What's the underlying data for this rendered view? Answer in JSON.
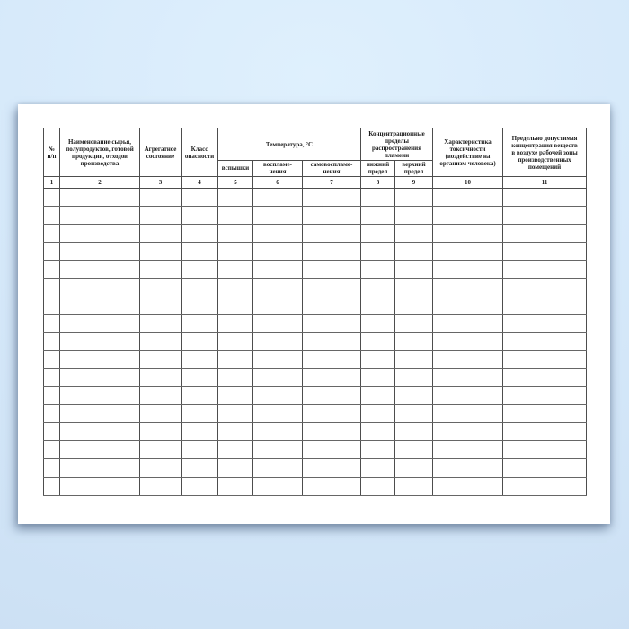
{
  "document": {
    "table": {
      "headers": {
        "num": "№\nп/п",
        "name": "Наименование сырья,\nполупродуктов, готовой\nпродукции, отходов\nпроизводства",
        "state": "Агрегатное\nсостояние",
        "hazard_class": "Класс\nопасности",
        "temperature_group": "Температура, °С",
        "temp_flash": "вспышки",
        "temp_ignition": "воспламе-\nнения",
        "temp_self_ignition": "самовоспламе-\nнения",
        "concentration_group": "Концентрационные\nпределы\nраспространения\nпламени",
        "limit_lower": "нижний\nпредел",
        "limit_upper": "верхний\nпредел",
        "toxicity": "Характеристика\nтоксичности\n(воздействие на\nорганизм человека)",
        "mac": "Предельно допустимая\nконцентрация веществ\nв воздухе рабочей зоны\nпроизводственных\nпомещений"
      },
      "column_numbers": [
        "1",
        "2",
        "3",
        "4",
        "5",
        "6",
        "7",
        "8",
        "9",
        "10",
        "11"
      ],
      "empty_row_count": 17,
      "column_count": 11
    }
  },
  "colors": {
    "background_top": "#dff0fd",
    "background_bottom": "#cbdff3",
    "paper": "#ffffff",
    "grid": "#4d4d4d",
    "row_line": "#666666",
    "text": "#1d1d1d"
  }
}
